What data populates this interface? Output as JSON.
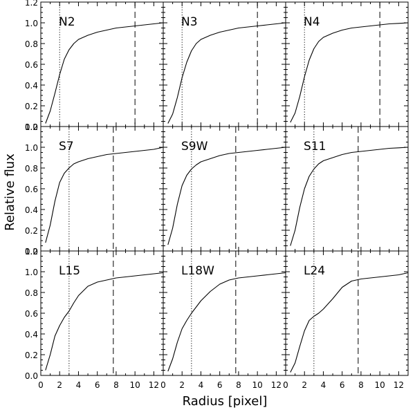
{
  "figure": {
    "xlabel": "Radius [pixel]",
    "ylabel": "Relative flux"
  },
  "chart_data": {
    "type": "line",
    "layout": "3x3 grid, shared axes",
    "xlim": [
      0,
      13
    ],
    "ylim": [
      0,
      1.2
    ],
    "x_ticks": [
      0,
      2,
      4,
      6,
      8,
      10,
      12
    ],
    "y_ticks": [
      0.0,
      0.2,
      0.4,
      0.6,
      0.8,
      1.0,
      1.2
    ],
    "y_tick_labels": [
      "0.0",
      "0.2",
      "0.4",
      "0.6",
      "0.8",
      "1.0",
      "1.2"
    ],
    "panels": [
      {
        "label": "N2",
        "dotted_x": 2.0,
        "dashed_x": 10.0,
        "x": [
          0.5,
          1,
          1.5,
          2,
          2.5,
          3,
          3.5,
          4,
          5,
          6,
          7,
          8,
          9,
          10,
          11,
          12,
          13
        ],
        "y": [
          0.03,
          0.15,
          0.32,
          0.5,
          0.65,
          0.74,
          0.8,
          0.84,
          0.88,
          0.91,
          0.93,
          0.95,
          0.96,
          0.97,
          0.98,
          0.99,
          1.0
        ]
      },
      {
        "label": "N3",
        "dotted_x": 2.0,
        "dashed_x": 10.0,
        "x": [
          0.5,
          1,
          1.5,
          2,
          2.5,
          3,
          3.5,
          4,
          5,
          6,
          7,
          8,
          9,
          10,
          11,
          12,
          13
        ],
        "y": [
          0.03,
          0.12,
          0.28,
          0.47,
          0.62,
          0.73,
          0.8,
          0.84,
          0.88,
          0.91,
          0.93,
          0.95,
          0.96,
          0.97,
          0.98,
          0.99,
          1.0
        ]
      },
      {
        "label": "N4",
        "dotted_x": 2.0,
        "dashed_x": 10.0,
        "x": [
          0.5,
          1,
          1.5,
          2,
          2.5,
          3,
          3.5,
          4,
          5,
          6,
          7,
          8,
          9,
          10,
          11,
          12,
          13
        ],
        "y": [
          0.04,
          0.13,
          0.29,
          0.48,
          0.64,
          0.75,
          0.82,
          0.86,
          0.9,
          0.93,
          0.95,
          0.96,
          0.97,
          0.98,
          0.99,
          0.995,
          1.0
        ]
      },
      {
        "label": "S7",
        "dotted_x": 3.0,
        "dashed_x": 7.7,
        "x": [
          0.5,
          1,
          1.5,
          2,
          2.5,
          3,
          3.5,
          4,
          5,
          6,
          7,
          8,
          9,
          10,
          11,
          12,
          13
        ],
        "y": [
          0.08,
          0.25,
          0.48,
          0.66,
          0.75,
          0.8,
          0.84,
          0.86,
          0.89,
          0.91,
          0.93,
          0.94,
          0.95,
          0.96,
          0.97,
          0.98,
          1.0
        ]
      },
      {
        "label": "S9W",
        "dotted_x": 3.0,
        "dashed_x": 7.7,
        "x": [
          0.5,
          1,
          1.5,
          2,
          2.5,
          3,
          3.5,
          4,
          5,
          6,
          7,
          8,
          9,
          10,
          11,
          12,
          13
        ],
        "y": [
          0.06,
          0.22,
          0.45,
          0.63,
          0.73,
          0.79,
          0.83,
          0.86,
          0.89,
          0.92,
          0.94,
          0.95,
          0.96,
          0.97,
          0.98,
          0.99,
          1.0
        ]
      },
      {
        "label": "S11",
        "dotted_x": 3.0,
        "dashed_x": 7.7,
        "x": [
          0.5,
          1,
          1.5,
          2,
          2.5,
          3,
          3.5,
          4,
          5,
          6,
          7,
          8,
          9,
          10,
          11,
          12,
          13
        ],
        "y": [
          0.05,
          0.2,
          0.42,
          0.6,
          0.72,
          0.79,
          0.84,
          0.87,
          0.9,
          0.93,
          0.95,
          0.96,
          0.97,
          0.98,
          0.99,
          0.995,
          1.0
        ]
      },
      {
        "label": "L15",
        "dotted_x": 3.0,
        "dashed_x": 7.7,
        "x": [
          0.5,
          1,
          1.5,
          2,
          2.5,
          3,
          3.5,
          4,
          5,
          6,
          7,
          8,
          9,
          10,
          11,
          12,
          13
        ],
        "y": [
          0.05,
          0.2,
          0.38,
          0.48,
          0.56,
          0.62,
          0.7,
          0.77,
          0.86,
          0.9,
          0.92,
          0.94,
          0.95,
          0.96,
          0.97,
          0.98,
          0.99
        ]
      },
      {
        "label": "L18W",
        "dotted_x": 3.0,
        "dashed_x": 7.7,
        "x": [
          0.5,
          1,
          1.5,
          2,
          2.5,
          3,
          3.5,
          4,
          5,
          6,
          7,
          8,
          9,
          10,
          11,
          12,
          13
        ],
        "y": [
          0.04,
          0.16,
          0.32,
          0.45,
          0.53,
          0.6,
          0.66,
          0.72,
          0.81,
          0.88,
          0.92,
          0.94,
          0.95,
          0.96,
          0.97,
          0.98,
          0.99
        ]
      },
      {
        "label": "L24",
        "dotted_x": 3.0,
        "dashed_x": 7.7,
        "x": [
          0.5,
          1,
          1.5,
          2,
          2.5,
          3,
          3.5,
          4,
          5,
          6,
          7,
          8,
          9,
          10,
          11,
          12,
          13
        ],
        "y": [
          0.03,
          0.12,
          0.28,
          0.43,
          0.53,
          0.57,
          0.6,
          0.64,
          0.74,
          0.85,
          0.91,
          0.93,
          0.94,
          0.95,
          0.96,
          0.97,
          0.99
        ]
      }
    ]
  }
}
